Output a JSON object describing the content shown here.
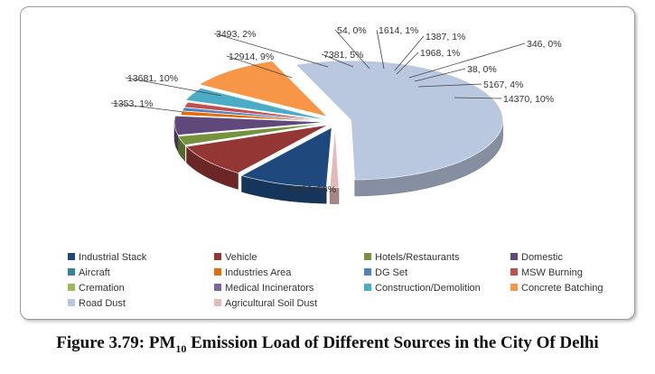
{
  "chart_data": {
    "type": "pie",
    "style": "3D exploded",
    "legend_position": "bottom",
    "slices": [
      {
        "name": "Industrial Stack",
        "value": 13681,
        "label": "13681, 10%",
        "color": "#1F497D"
      },
      {
        "name": "Vehicle",
        "value": 12914,
        "label": "12914, 9%",
        "color": "#943634"
      },
      {
        "name": "Hotels/Restaurants",
        "value": 3493,
        "label": "3493, 2%",
        "color": "#76923C"
      },
      {
        "name": "Domestic",
        "value": 7381,
        "label": "7381, 5%",
        "color": "#5F497A"
      },
      {
        "name": "Aircraft",
        "value": 54,
        "label": "54, 0%",
        "color": "#31859C"
      },
      {
        "name": "Industries Area",
        "value": 1614,
        "label": "1614, 1%",
        "color": "#E36C09"
      },
      {
        "name": "DG Set",
        "value": 1387,
        "label": "1387, 1%",
        "color": "#4F81BD"
      },
      {
        "name": "MSW Burning",
        "value": 1968,
        "label": "1968, 1%",
        "color": "#C0504D"
      },
      {
        "name": "Cremation",
        "value": 346,
        "label": "346, 0%",
        "color": "#9BBB59"
      },
      {
        "name": "Medical Incinerators",
        "value": 38,
        "label": "38, 0%",
        "color": "#8064A2"
      },
      {
        "name": "Construction/Demolition",
        "value": 5167,
        "label": "5167, 4%",
        "color": "#4BACC6"
      },
      {
        "name": "Concrete Batching",
        "value": 14370,
        "label": "14370, 10%",
        "color": "#F79646"
      },
      {
        "name": "Road Dust",
        "value": 79626,
        "label": "79626, 56%",
        "color": "#B9C7DF"
      },
      {
        "name": "Agricultural Soil Dust",
        "value": 1353,
        "label": "1353, 1%",
        "color": "#E6B9B8"
      }
    ]
  },
  "caption": {
    "prefix": "Figure 3.79: PM",
    "subscript": "10",
    "suffix": " Emission Load of Different Sources in the City Of Delhi"
  }
}
